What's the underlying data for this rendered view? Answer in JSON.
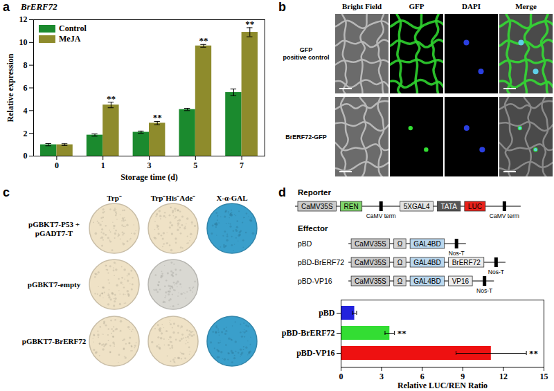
{
  "panel_labels": [
    "a",
    "b",
    "c",
    "d"
  ],
  "chart_data": [
    {
      "type": "bar",
      "title": "BrERF72",
      "x_label": "Storage time (d)",
      "y_label": "Relative expression",
      "categories": [
        "0",
        "1",
        "3",
        "5",
        "7"
      ],
      "series": [
        {
          "name": "Control",
          "color": "#1b8a2e",
          "values": [
            1.0,
            1.85,
            2.1,
            4.1,
            5.6
          ],
          "errors": [
            0.1,
            0.1,
            0.1,
            0.1,
            0.3
          ]
        },
        {
          "name": "MeJA",
          "color": "#8e8b2c",
          "values": [
            1.0,
            4.5,
            2.9,
            9.7,
            10.9
          ],
          "errors": [
            0.08,
            0.25,
            0.15,
            0.12,
            0.4
          ],
          "annotations": [
            null,
            "**",
            "**",
            "**",
            "**"
          ]
        }
      ],
      "ylim": [
        0,
        12
      ],
      "yticks": [
        0,
        2,
        4,
        6,
        8,
        10,
        12
      ],
      "legend": "top-left",
      "grid": false
    },
    {
      "type": "bar",
      "orientation": "horizontal",
      "x_label": "Relative LUC/REN Ratio",
      "categories": [
        "pBD",
        "pBD-BrERF72",
        "pBD-VP16"
      ],
      "values": [
        1.0,
        3.6,
        11.1
      ],
      "errors": [
        0.15,
        0.35,
        2.6
      ],
      "annotations": [
        null,
        "**",
        "**"
      ],
      "colors": [
        "#2222dd",
        "#33dd33",
        "#ee1111"
      ],
      "xlim": [
        0,
        15
      ],
      "xticks": [
        0,
        3,
        6,
        9,
        12,
        15
      ],
      "grid": false
    }
  ],
  "images": {
    "columns": [
      "Bright Field",
      "GFP",
      "DAPI",
      "Merge"
    ],
    "rows": [
      [
        "GFP",
        "positive control"
      ],
      [
        "BrERF72-GFP"
      ]
    ]
  },
  "yeast": {
    "columns": [
      "Trp⁻",
      "Trp⁻His⁻Ade⁻",
      "X-α-GAL"
    ],
    "rows": [
      [
        "pGBKT7-P53 +",
        "pGADT7-T"
      ],
      [
        "pGBKT7-empty"
      ],
      [
        "pGBKT7-BrERF72"
      ]
    ],
    "colors": [
      [
        "#efe2c6",
        "#efe2c6",
        "#3a9fcb"
      ],
      [
        "#efe2c6",
        "#d9d8d2",
        null
      ],
      [
        "#efe2c6",
        "#efe2c6",
        "#3a9fcb"
      ]
    ]
  },
  "constructs": {
    "reporter": {
      "title": "Reporter",
      "elements": [
        {
          "label": "CaMV35S",
          "color": "#c9c9c9"
        },
        {
          "label": "REN",
          "color": "#7fd36b"
        },
        {
          "label": "CaMV term",
          "color": "#000000",
          "type": "terminator"
        },
        {
          "label": "5XGAL4",
          "color": "#e2e2e2"
        },
        {
          "label": "TATA",
          "color": "#555555"
        },
        {
          "label": "LUC",
          "color": "#e8201a"
        },
        {
          "label": "CaMV term",
          "color": "#000000",
          "type": "terminator"
        }
      ]
    },
    "effector": {
      "title": "Effector",
      "rows": [
        {
          "name": "pBD",
          "elements": [
            {
              "label": "CaMV35S",
              "color": "#c9c9c9"
            },
            {
              "label": "Ω",
              "color": "#d6d6d6"
            },
            {
              "label": "GAL4BD",
              "color": "#b9d7ee"
            },
            {
              "label": "Nos-T",
              "color": "#000000",
              "type": "terminator"
            }
          ]
        },
        {
          "name": "pBD-BrERF72",
          "elements": [
            {
              "label": "CaMV35S",
              "color": "#c9c9c9"
            },
            {
              "label": "Ω",
              "color": "#d6d6d6"
            },
            {
              "label": "GAL4BD",
              "color": "#b9d7ee"
            },
            {
              "label": "BrERF72",
              "color": "#ececec"
            },
            {
              "label": "Nos-T",
              "color": "#000000",
              "type": "terminator"
            }
          ]
        },
        {
          "name": "pBD-VP16",
          "elements": [
            {
              "label": "CaMV35S",
              "color": "#c9c9c9"
            },
            {
              "label": "Ω",
              "color": "#d6d6d6"
            },
            {
              "label": "GAL4BD",
              "color": "#b9d7ee"
            },
            {
              "label": "VP16",
              "color": "#ececec"
            },
            {
              "label": "Nos-T",
              "color": "#000000",
              "type": "terminator"
            }
          ]
        }
      ]
    }
  }
}
